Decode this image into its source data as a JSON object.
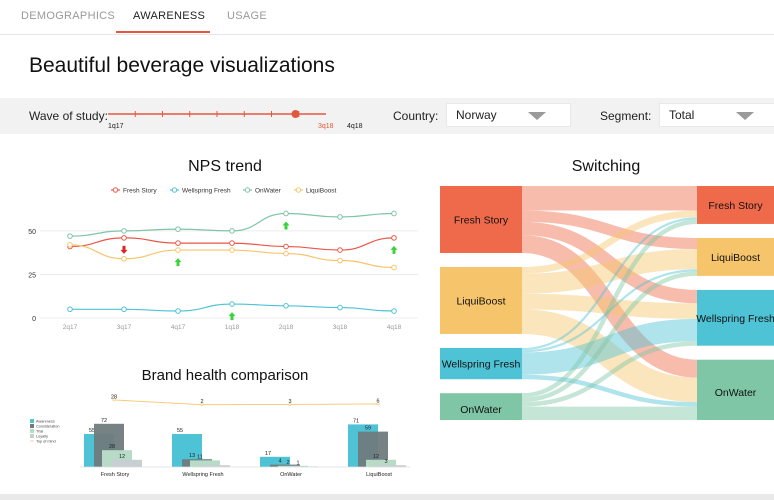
{
  "tabs": [
    {
      "label": "DEMOGRAPHICS",
      "active": false
    },
    {
      "label": "AWARENESS",
      "active": true
    },
    {
      "label": "USAGE",
      "active": false
    }
  ],
  "accent_color": "#e4573f",
  "page_title": "Beautiful beverage visualizations",
  "filters": {
    "wave_label": "Wave of study:",
    "wave_start": "1q17",
    "wave_selected": "3q18",
    "wave_end": "4q18",
    "wave_position": 0.86,
    "country_label": "Country:",
    "country_value": "Norway",
    "segment_label": "Segment:",
    "segment_value": "Total"
  },
  "icons": {
    "dropdown": "chevron-down-icon",
    "arrow_up": "arrow-up-icon",
    "arrow_down": "arrow-down-icon"
  },
  "chart_data": [
    {
      "type": "line",
      "title": "NPS trend",
      "x": [
        "2q17",
        "3q17",
        "4q17",
        "1q18",
        "2q18",
        "3q18",
        "4q18"
      ],
      "ylim": [
        0,
        62
      ],
      "yticks": [
        0,
        25,
        50
      ],
      "grid": true,
      "legend_position": "top",
      "series": [
        {
          "name": "Fresh Story",
          "color": "#e8574a",
          "values": [
            41,
            46,
            43,
            43,
            41,
            39,
            46
          ],
          "markers": {
            "1": "down",
            "6": "up"
          }
        },
        {
          "name": "Wellspring Fresh",
          "color": "#4fc3d6",
          "values": [
            5,
            5,
            4,
            8,
            7,
            6,
            4
          ],
          "markers": {
            "3": "up"
          }
        },
        {
          "name": "OnWater",
          "color": "#7ec6a5",
          "values": [
            47,
            50,
            51,
            50,
            60,
            58,
            60
          ],
          "markers": {
            "4": "up"
          }
        },
        {
          "name": "LiquiBoost",
          "color": "#f6c56b",
          "values": [
            42,
            34,
            39,
            39,
            37,
            33,
            29
          ],
          "markers": {
            "2": "up"
          }
        }
      ]
    },
    {
      "type": "bar",
      "title": "Brand health comparison",
      "categories": [
        "Fresh Story",
        "Wellspring Fresh",
        "OnWater",
        "LiquiBoost"
      ],
      "legend_position": "left",
      "series": [
        {
          "name": "Awareness",
          "color": "#4fc3d6",
          "values": [
            55,
            55,
            17,
            71
          ]
        },
        {
          "name": "Consideration",
          "color": "#6f7b7d",
          "values": [
            72,
            13,
            4,
            59
          ]
        },
        {
          "name": "Trial",
          "color": "#b7dbc6",
          "values": [
            28,
            11,
            2,
            12
          ]
        },
        {
          "name": "Loyalty",
          "color": "#c8cfd3",
          "values": [
            12,
            3,
            1,
            3
          ]
        }
      ],
      "line_series": {
        "name": "Top of mind",
        "color": "#f6c56b",
        "values": [
          28,
          2,
          3,
          6
        ]
      },
      "value_labels": {
        "Awareness": [
          "55",
          "55",
          "17",
          "71"
        ],
        "Consideration": [
          "72",
          "13",
          "4",
          "59"
        ],
        "Trial": [
          "28",
          "11",
          "2",
          "12"
        ],
        "Loyalty": [
          "12",
          "",
          "1",
          "3"
        ],
        "Top of mind": [
          "28",
          "2",
          "3",
          "6"
        ]
      }
    },
    {
      "type": "sankey",
      "title": "Switching",
      "sources": [
        {
          "name": "Fresh Story",
          "color": "#ef6a4a",
          "value": 30
        },
        {
          "name": "LiquiBoost",
          "color": "#f6c56b",
          "value": 30
        },
        {
          "name": "Wellspring Fresh",
          "color": "#4fc3d6",
          "value": 14
        },
        {
          "name": "OnWater",
          "color": "#7ec6a5",
          "value": 14
        }
      ],
      "targets": [
        {
          "name": "Fresh Story",
          "color": "#ef6a4a",
          "value": 17
        },
        {
          "name": "LiquiBoost",
          "color": "#f6c56b",
          "value": 17
        },
        {
          "name": "Wellspring Fresh",
          "color": "#4fc3d6",
          "value": 25
        },
        {
          "name": "OnWater",
          "color": "#7ec6a5",
          "value": 29
        }
      ],
      "flows": [
        [
          0,
          0,
          11
        ],
        [
          0,
          1,
          5
        ],
        [
          0,
          2,
          6
        ],
        [
          0,
          3,
          8
        ],
        [
          1,
          0,
          3
        ],
        [
          1,
          1,
          9
        ],
        [
          1,
          2,
          7
        ],
        [
          1,
          3,
          11
        ],
        [
          2,
          0,
          1
        ],
        [
          2,
          1,
          1
        ],
        [
          2,
          2,
          10
        ],
        [
          2,
          3,
          2
        ],
        [
          3,
          0,
          2
        ],
        [
          3,
          1,
          2
        ],
        [
          3,
          2,
          2
        ],
        [
          3,
          3,
          8
        ]
      ]
    }
  ]
}
